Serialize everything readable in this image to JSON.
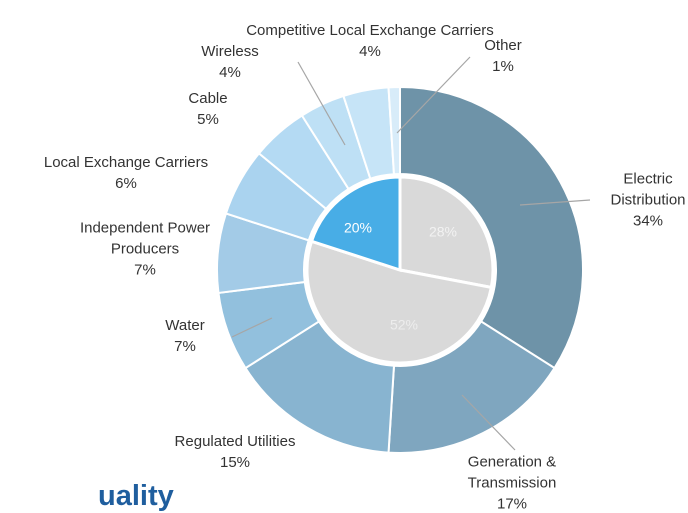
{
  "chart_data": {
    "type": "sunburst",
    "categories": [
      "Electric Distribution",
      "Generation & Transmission",
      "Regulated Utilities",
      "Water",
      "Independent Power Producers",
      "Local Exchange Carriers",
      "Cable",
      "Wireless",
      "Competitive Local Exchange Carriers",
      "Other"
    ],
    "values": [
      34,
      17,
      15,
      7,
      7,
      6,
      5,
      4,
      4,
      1
    ],
    "value_labels": [
      "34%",
      "17%",
      "15%",
      "7%",
      "7%",
      "6%",
      "5%",
      "4%",
      "4%",
      "1%"
    ],
    "colors": [
      "#6e93a8",
      "#7fa6bf",
      "#88b4d0",
      "#92c0dd",
      "#a3cbe7",
      "#aad3ef",
      "#b4daf3",
      "#bee0f5",
      "#c6e4f7",
      "#d8ecf9"
    ],
    "inner": {
      "values": [
        28,
        52,
        20
      ],
      "value_labels": [
        "28%",
        "52%",
        "20%"
      ],
      "colors": [
        "#d9d9d9",
        "#d9d9d9",
        "#48ade6"
      ]
    },
    "footer": "uality"
  }
}
